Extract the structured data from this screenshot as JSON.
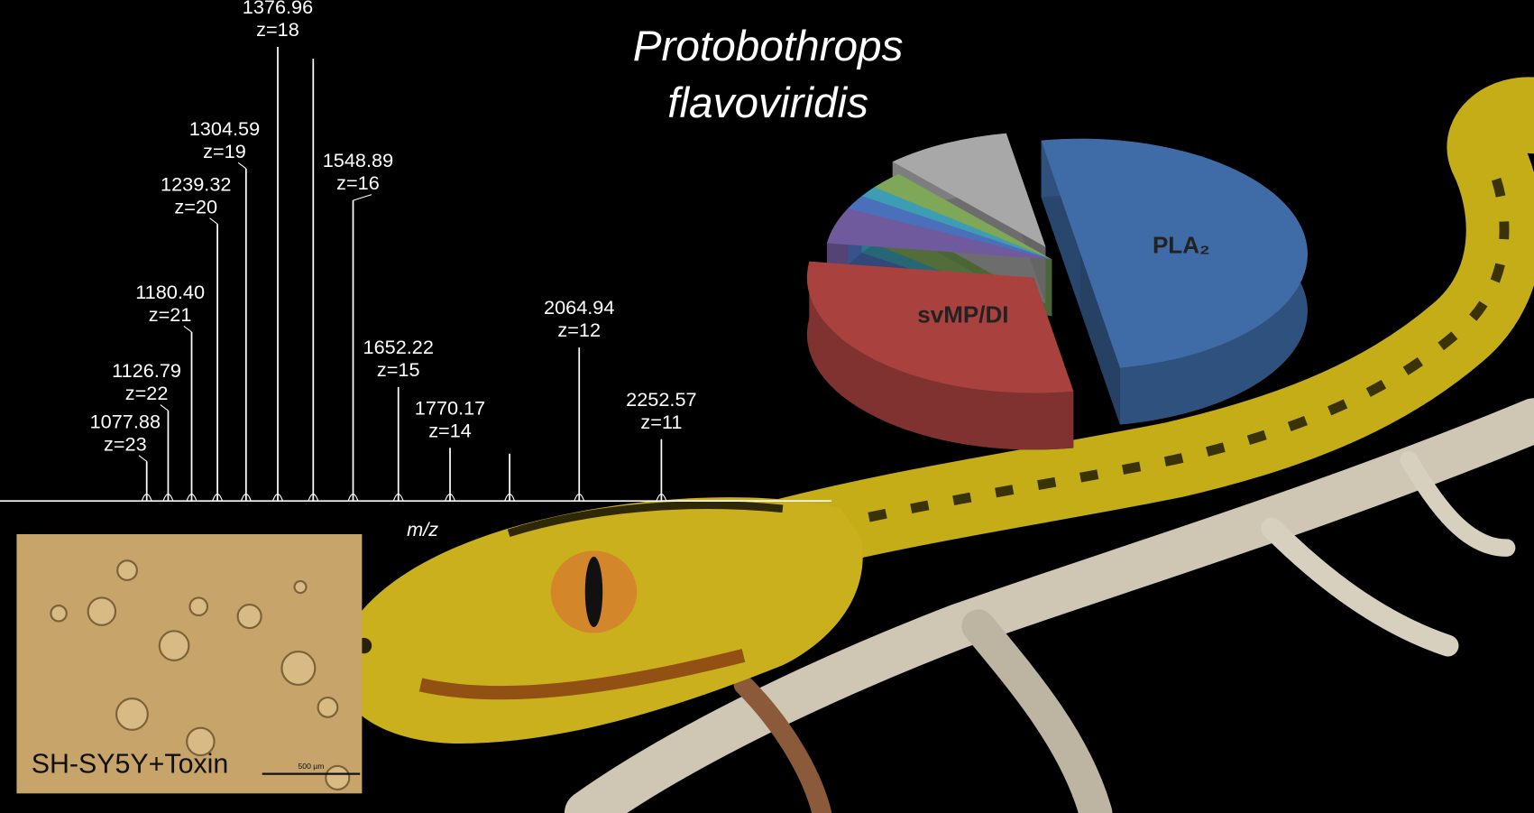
{
  "title": [
    "Protobothrops",
    "flavoviridis"
  ],
  "chart_data": [
    {
      "type": "spectrum",
      "xlabel": "m/z",
      "x": [
        1077.88,
        1126.79,
        1180.4,
        1239.32,
        1304.59,
        1376.96,
        1457.9,
        1548.89,
        1652.22,
        1770.17,
        1906.2,
        2064.94,
        2252.57
      ],
      "x_labels": [
        "1077.88",
        "1126.79",
        "1180.40",
        "1239.32",
        "1304.59",
        "1376.96",
        null,
        "1548.89",
        "1652.22",
        "1770.17",
        null,
        "2064.94",
        "2252.57"
      ],
      "charges": [
        "z=23",
        "z=22",
        "z=21",
        "z=20",
        "z=19",
        "z=18",
        null,
        "z=16",
        "z=15",
        "z=14",
        null,
        "z=12",
        "z=11"
      ],
      "values": [
        8.7,
        19.9,
        37.2,
        61.0,
        73.2,
        100,
        97.4,
        66.2,
        25.1,
        11.7,
        10.4,
        33.8,
        13.6
      ],
      "xlim": [
        743,
        2641
      ],
      "ylim": [
        0,
        100
      ],
      "color": "#ffffff"
    },
    {
      "type": "pie",
      "labels": [
        "PLA₂",
        "svMP/DI",
        null,
        null,
        null,
        null,
        null
      ],
      "values": [
        50,
        30,
        5,
        2,
        1.5,
        2.5,
        9
      ],
      "colors": [
        "#3f6ca6",
        "#a9423f",
        "#6e5a9c",
        "#4a6fbb",
        "#3c9db4",
        "#7ea858",
        "#a8a8a8"
      ]
    }
  ],
  "inset": {
    "caption": "SH-SY5Y+Toxin",
    "scale_bar": "500 µm"
  }
}
